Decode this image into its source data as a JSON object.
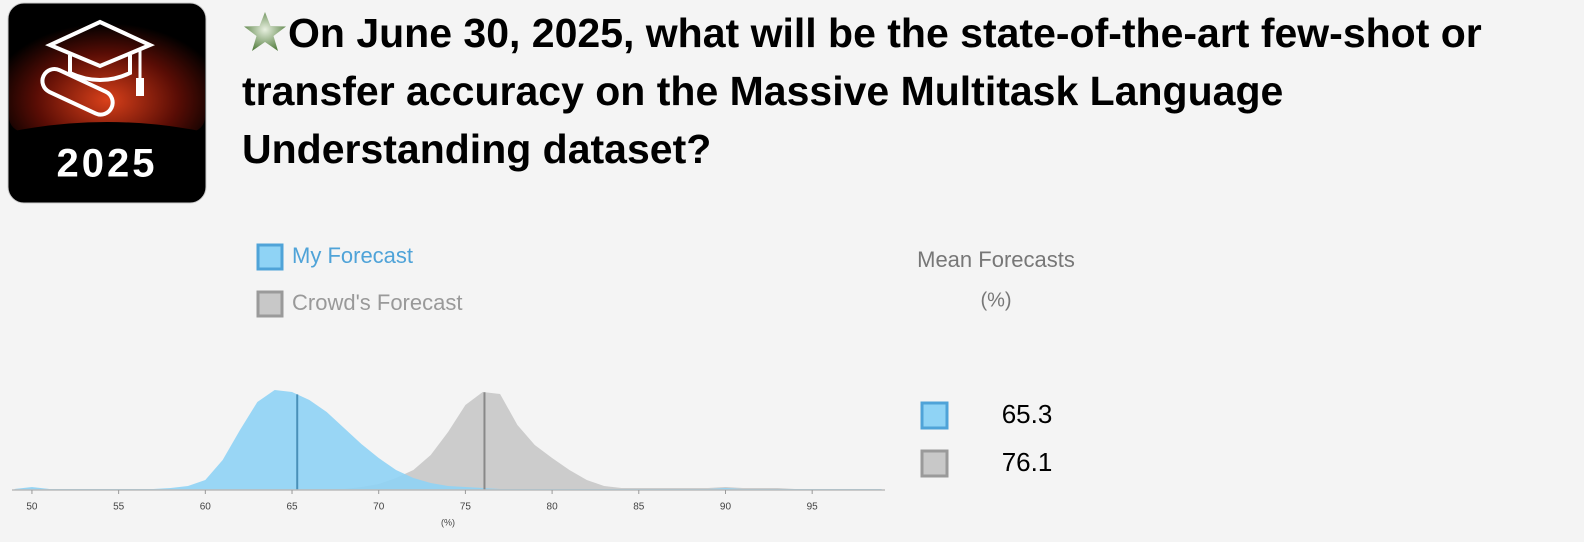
{
  "header": {
    "title": "On June 30, 2025, what will be the state-of-the-art few-shot or transfer accuracy on the Massive Multitask Language Understanding dataset?"
  },
  "icon": {
    "label": "2025"
  },
  "mean_forecasts": {
    "title": "Mean Forecasts",
    "unit": "(%)",
    "values": [
      65.3,
      76.1
    ]
  },
  "chart_data": {
    "type": "area",
    "xlabel": "(%)",
    "x": [
      49,
      50,
      51,
      52,
      53,
      54,
      55,
      56,
      57,
      58,
      59,
      60,
      61,
      62,
      63,
      64,
      65,
      66,
      67,
      68,
      69,
      70,
      71,
      72,
      73,
      74,
      75,
      76,
      77,
      78,
      79,
      80,
      81,
      82,
      83,
      84,
      85,
      86,
      87,
      88,
      89,
      90,
      91,
      92,
      93,
      94,
      95,
      96,
      97,
      98,
      99
    ],
    "series": [
      {
        "name": "Crowd's Forecast",
        "color": "#c8c8c8",
        "border": "#9a9a9a",
        "values": [
          0.01,
          0.02,
          0.01,
          0.01,
          0.01,
          0.01,
          0.01,
          0.01,
          0.01,
          0.01,
          0.01,
          0.01,
          0.01,
          0.01,
          0.01,
          0.01,
          0.01,
          0.01,
          0.01,
          0.01,
          0.03,
          0.06,
          0.12,
          0.2,
          0.35,
          0.58,
          0.85,
          0.98,
          0.96,
          0.65,
          0.45,
          0.32,
          0.2,
          0.1,
          0.04,
          0.02,
          0.02,
          0.02,
          0.02,
          0.02,
          0.02,
          0.03,
          0.02,
          0.02,
          0.02,
          0.01,
          0.01,
          0.01,
          0.01,
          0.01,
          0.01
        ]
      },
      {
        "name": "My Forecast",
        "color": "#8fd3f5",
        "border": "#4fa3d8",
        "values": [
          0.01,
          0.03,
          0.01,
          0.01,
          0.01,
          0.01,
          0.01,
          0.01,
          0.01,
          0.02,
          0.04,
          0.1,
          0.3,
          0.6,
          0.88,
          1.0,
          0.98,
          0.9,
          0.78,
          0.62,
          0.46,
          0.32,
          0.2,
          0.12,
          0.07,
          0.04,
          0.03,
          0.02,
          0.01,
          0.01,
          0.01,
          0.01,
          0.01,
          0.01,
          0.01,
          0.01,
          0.01,
          0.01,
          0.01,
          0.01,
          0.01,
          0.02,
          0.01,
          0.01,
          0.01,
          0.01,
          0.01,
          0.01,
          0.01,
          0.01,
          0.01
        ]
      }
    ],
    "xlim": [
      48.85,
      99.2
    ],
    "xticks": [
      50,
      55,
      60,
      65,
      70,
      75,
      80,
      85,
      90,
      95
    ],
    "ylim": [
      0,
      1
    ]
  }
}
